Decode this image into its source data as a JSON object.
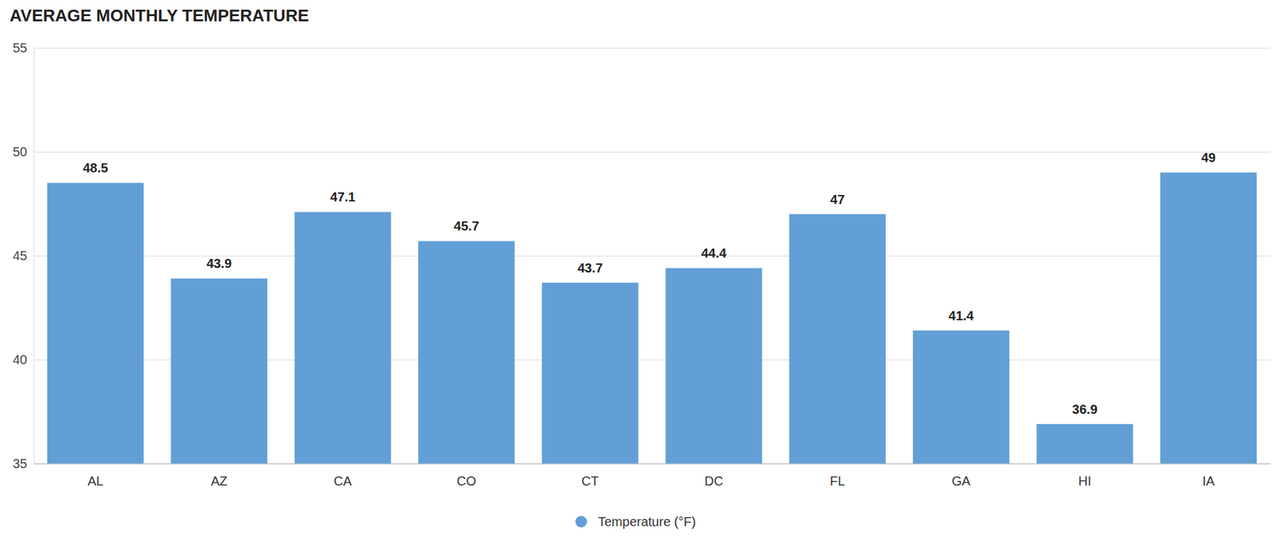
{
  "chart_data": {
    "type": "bar",
    "title": "AVERAGE MONTHLY TEMPERATURE",
    "categories": [
      "AL",
      "AZ",
      "CA",
      "CO",
      "CT",
      "DC",
      "FL",
      "GA",
      "HI",
      "IA"
    ],
    "series": [
      {
        "name": "Temperature (°F)",
        "color": "#629fd6",
        "values": [
          48.5,
          43.9,
          47.1,
          45.7,
          43.7,
          44.4,
          47,
          41.4,
          36.9,
          49
        ]
      }
    ],
    "ylim": [
      35,
      55
    ],
    "yticks": [
      35,
      40,
      45,
      50,
      55
    ],
    "grid": true,
    "legend": "bottom",
    "data_labels": true
  }
}
